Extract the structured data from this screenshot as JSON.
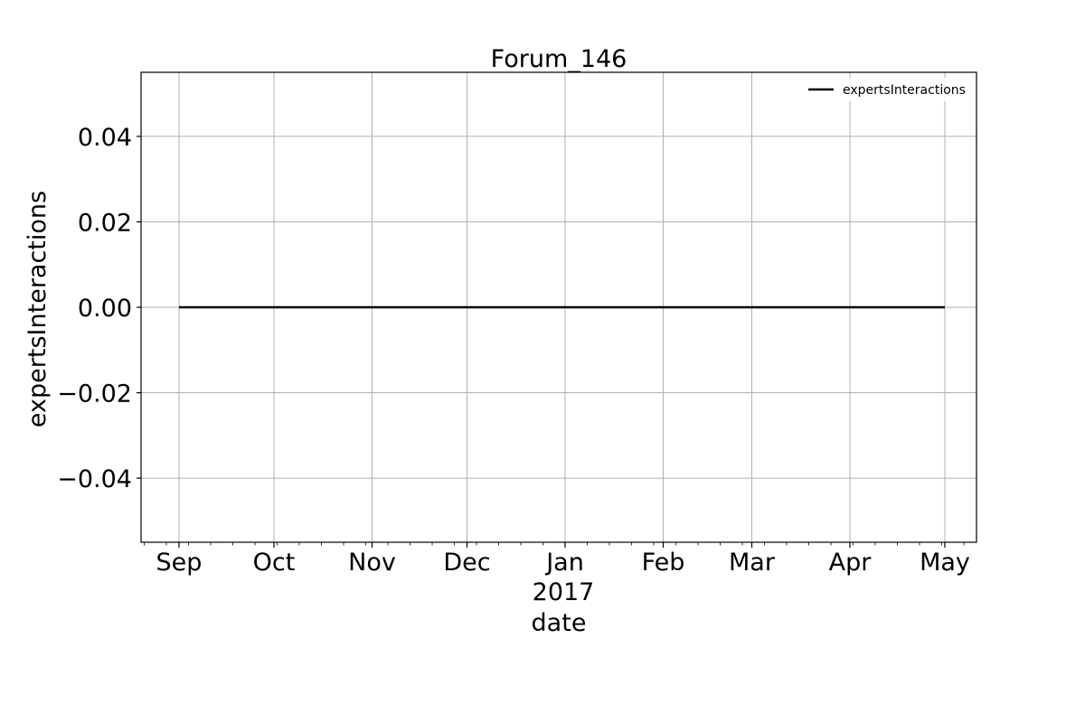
{
  "chart_data": {
    "type": "line",
    "title": "Forum_146",
    "xlabel": "date",
    "ylabel": "expertsInteractions",
    "x_ticks": [
      {
        "date": "2016-09-01",
        "label": "Sep"
      },
      {
        "date": "2016-10-01",
        "label": "Oct"
      },
      {
        "date": "2016-11-01",
        "label": "Nov"
      },
      {
        "date": "2016-12-01",
        "label": "Dec"
      },
      {
        "date": "2017-01-01",
        "label": "Jan"
      },
      {
        "date": "2017-02-01",
        "label": "Feb"
      },
      {
        "date": "2017-03-01",
        "label": "Mar"
      },
      {
        "date": "2017-04-01",
        "label": "Apr"
      },
      {
        "date": "2017-05-01",
        "label": "May"
      }
    ],
    "x_year_label": "2017",
    "xlim": [
      "2016-08-20",
      "2017-05-11"
    ],
    "ylim": [
      -0.055,
      0.055
    ],
    "y_ticks": [
      {
        "value": -0.04,
        "label": "−0.04"
      },
      {
        "value": -0.02,
        "label": "−0.02"
      },
      {
        "value": 0.0,
        "label": "0.00"
      },
      {
        "value": 0.02,
        "label": "0.02"
      },
      {
        "value": 0.04,
        "label": "0.04"
      }
    ],
    "grid": true,
    "legend_position": "top-right",
    "series": [
      {
        "name": "expertsInteractions",
        "color": "#000000",
        "x": [
          "2016-09-01",
          "2017-05-01"
        ],
        "y": [
          0,
          0
        ]
      }
    ]
  }
}
